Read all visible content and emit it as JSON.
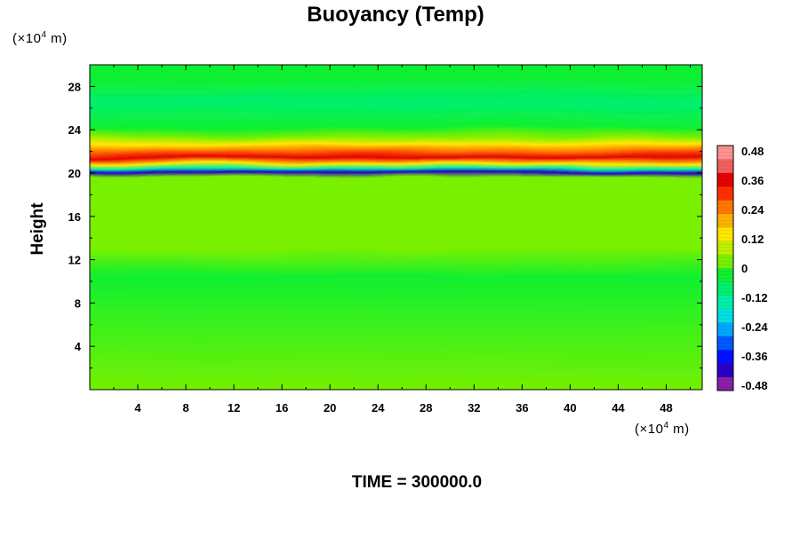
{
  "chart_data": {
    "type": "heatmap",
    "title": "Buoyancy (Temp)",
    "xlabel": "",
    "ylabel": "Height",
    "x_unit_text": "(×10",
    "x_unit_exp": "4",
    "x_unit_tail": " m)",
    "y_unit_text": "(×10",
    "y_unit_exp": "4",
    "y_unit_tail": " m)",
    "xlim": [
      0,
      51
    ],
    "ylim": [
      0,
      30
    ],
    "x_ticks": [
      4,
      8,
      12,
      16,
      20,
      24,
      28,
      32,
      36,
      40,
      44,
      48
    ],
    "y_ticks": [
      4,
      8,
      12,
      16,
      20,
      24,
      28
    ],
    "color_scale": {
      "min": -0.48,
      "max": 0.48,
      "tick_labels": [
        "0.48",
        "0.36",
        "0.24",
        "0.12",
        "0",
        "-0.12",
        "-0.24",
        "-0.36",
        "-0.48"
      ],
      "colors": [
        "#8a1fa8",
        "#2a00c8",
        "#0012ff",
        "#005aff",
        "#00a6ff",
        "#00e0e0",
        "#00f0a8",
        "#00f070",
        "#10f030",
        "#78f000",
        "#c0f000",
        "#ffe800",
        "#ffb000",
        "#ff7800",
        "#ff3000",
        "#e80000",
        "#f06060",
        "#ff9090"
      ]
    },
    "profile": [
      {
        "height": 0.0,
        "value": 0.0
      },
      {
        "height": 10.5,
        "value": -0.02
      },
      {
        "height": 13.0,
        "value": 0.02
      },
      {
        "height": 19.5,
        "value": 0.0
      },
      {
        "height": 20.0,
        "value": -0.38
      },
      {
        "height": 20.4,
        "value": -0.16
      },
      {
        "height": 20.8,
        "value": 0.14
      },
      {
        "height": 21.3,
        "value": 0.36
      },
      {
        "height": 21.9,
        "value": 0.24
      },
      {
        "height": 22.5,
        "value": 0.12
      },
      {
        "height": 23.2,
        "value": 0.05
      },
      {
        "height": 24.0,
        "value": -0.04
      },
      {
        "height": 26.3,
        "value": -0.1
      },
      {
        "height": 28.5,
        "value": -0.05
      },
      {
        "height": 30.0,
        "value": -0.02
      }
    ]
  },
  "footer": {
    "time_text": "TIME = 300000.0"
  }
}
